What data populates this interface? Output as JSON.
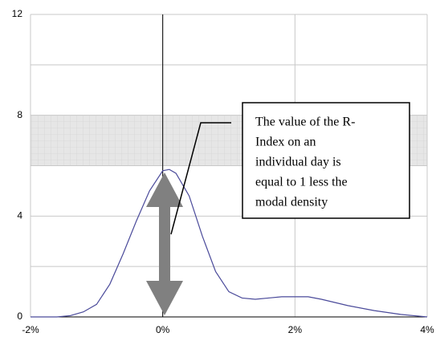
{
  "chart_data": {
    "type": "line",
    "series": [
      {
        "color": "#4a4a9a",
        "x": [
          -2,
          -1.6,
          -1.4,
          -1.2,
          -1.0,
          -0.8,
          -0.6,
          -0.4,
          -0.2,
          0,
          0.1,
          0.2,
          0.4,
          0.6,
          0.8,
          1.0,
          1.2,
          1.4,
          1.6,
          1.8,
          2.0,
          2.2,
          2.4,
          2.8,
          3.2,
          3.6,
          3.8,
          4
        ],
        "y": [
          0,
          0,
          0.05,
          0.2,
          0.5,
          1.3,
          2.5,
          3.8,
          5.0,
          5.8,
          5.85,
          5.7,
          4.8,
          3.2,
          1.8,
          1.0,
          0.75,
          0.7,
          0.75,
          0.8,
          0.8,
          0.8,
          0.7,
          0.45,
          0.25,
          0.1,
          0.05,
          0
        ]
      }
    ],
    "xlim": [
      -2,
      4
    ],
    "xticks": [
      {
        "value": -2,
        "label": "-2%"
      },
      {
        "value": 0,
        "label": "0%"
      },
      {
        "value": 2,
        "label": "2%"
      },
      {
        "value": 4,
        "label": "4%"
      }
    ],
    "ylim": [
      0,
      12
    ],
    "yticks": [
      0,
      4,
      8,
      12
    ],
    "minor_yticks": [
      2,
      6,
      10
    ],
    "grid": true,
    "band": [
      6,
      8
    ],
    "annotation": [
      "The value of the R-",
      "Index on an",
      "individual day is",
      "equal to 1 less the",
      "modal density"
    ]
  }
}
